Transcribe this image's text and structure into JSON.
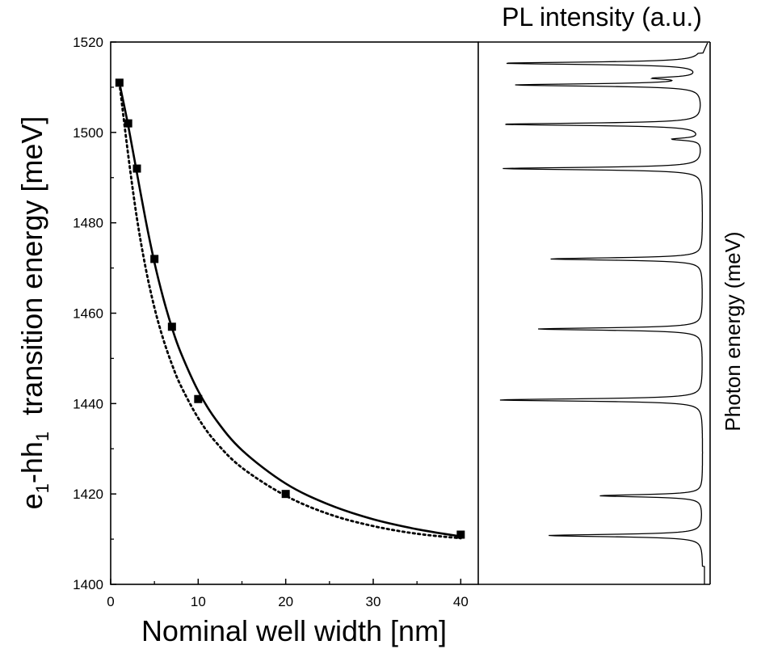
{
  "chart_data": [
    {
      "type": "scatter",
      "xlabel": "Nominal well width [nm]",
      "ylabel_main": "e",
      "ylabel_sub1": "1",
      "ylabel_mid": "-hh",
      "ylabel_sub2": "1",
      "ylabel_tail": "  transition energy [meV]",
      "xlim": [
        0,
        42
      ],
      "ylim": [
        1400,
        1520
      ],
      "xticks": [
        0,
        10,
        20,
        30,
        40
      ],
      "yticks": [
        1400,
        1420,
        1440,
        1460,
        1480,
        1500,
        1520
      ],
      "grid": false,
      "series": [
        {
          "style": "markers",
          "x": [
            1,
            2,
            3,
            5,
            7,
            10,
            20,
            40
          ],
          "y": [
            1511,
            1502,
            1492,
            1472,
            1457,
            1441,
            1420,
            1411
          ]
        },
        {
          "style": "solid-line",
          "x": [
            1,
            2,
            3,
            4,
            5,
            6,
            7,
            8,
            10,
            12,
            15,
            20,
            25,
            30,
            35,
            40
          ],
          "y": [
            1511,
            1501.5,
            1491,
            1480.6,
            1471.2,
            1463.4,
            1456.8,
            1451.3,
            1442.8,
            1436.5,
            1429.7,
            1422.3,
            1417.6,
            1414.4,
            1412.2,
            1410.6
          ]
        },
        {
          "style": "dotted-line",
          "x": [
            1,
            2,
            3,
            4,
            5,
            6,
            7,
            8,
            10,
            12,
            15,
            20,
            25,
            30,
            35,
            40
          ],
          "y": [
            1511,
            1495,
            1481,
            1470,
            1461.2,
            1454.3,
            1448.7,
            1444,
            1436.8,
            1431.5,
            1425.8,
            1419.6,
            1415.5,
            1412.9,
            1411.2,
            1410.2
          ]
        }
      ]
    },
    {
      "type": "line",
      "title": "PL intensity (a.u.)",
      "ylabel": "Photon energy (meV)",
      "ylim": [
        1400,
        1520
      ],
      "peaks": [
        {
          "y": 1515.3,
          "amplitude": 0.96
        },
        {
          "y": 1512.0,
          "amplitude": 0.2
        },
        {
          "y": 1510.5,
          "amplitude": 0.9
        },
        {
          "y": 1501.8,
          "amplitude": 0.97
        },
        {
          "y": 1498.5,
          "amplitude": 0.14
        },
        {
          "y": 1492.0,
          "amplitude": 0.97
        },
        {
          "y": 1472.0,
          "amplitude": 0.74
        },
        {
          "y": 1456.5,
          "amplitude": 0.8
        },
        {
          "y": 1440.8,
          "amplitude": 0.99
        },
        {
          "y": 1419.6,
          "amplitude": 0.5
        },
        {
          "y": 1410.8,
          "amplitude": 0.75
        }
      ]
    }
  ]
}
